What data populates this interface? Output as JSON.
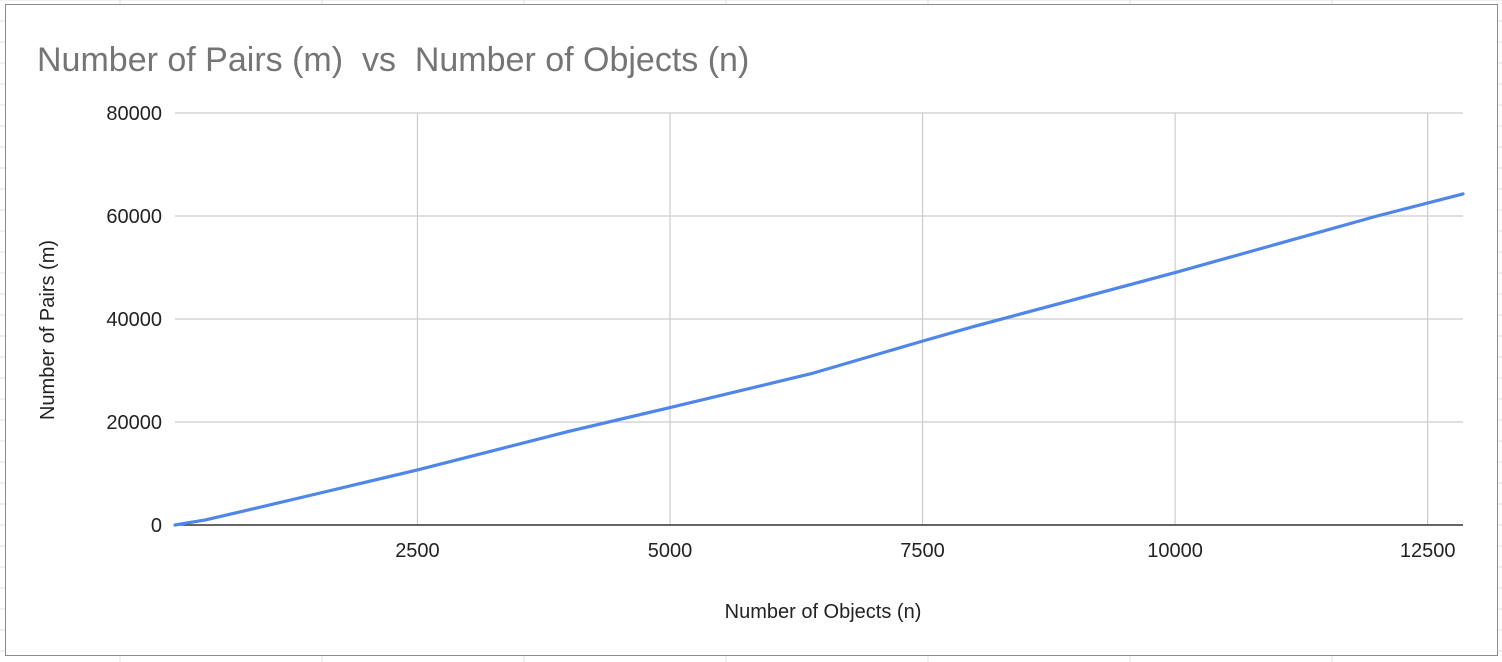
{
  "chart_data": {
    "type": "line",
    "title": "Number of Pairs (m)  vs  Number of Objects (n)",
    "xlabel": "Number of Objects (n)",
    "ylabel": "Number of Pairs (m)",
    "xlim": [
      100,
      12850
    ],
    "ylim": [
      0,
      80000
    ],
    "x_ticks": [
      2500,
      5000,
      7500,
      10000,
      12500
    ],
    "y_ticks": [
      0,
      20000,
      40000,
      60000,
      80000
    ],
    "x_tick_labels": [
      "2500",
      "5000",
      "7500",
      "10000",
      "12500"
    ],
    "y_tick_labels": [
      "0",
      "20000",
      "40000",
      "60000",
      "80000"
    ],
    "grid": true,
    "legend": "none",
    "series": [
      {
        "color": "#4f86e8",
        "x": [
          100,
          400,
          800,
          1600,
          2500,
          3200,
          4000,
          5000,
          6400,
          7500,
          8000,
          10000,
          11000,
          12000,
          12850
        ],
        "y": [
          0,
          1000,
          2800,
          6500,
          10700,
          14200,
          18200,
          22800,
          29400,
          35700,
          38500,
          49000,
          54500,
          60000,
          64300
        ]
      }
    ],
    "colors": {
      "title": "#757575",
      "grid": "#cccccc",
      "axis": "#333333",
      "text": "#222222",
      "frame": "#8c8c8c"
    }
  }
}
